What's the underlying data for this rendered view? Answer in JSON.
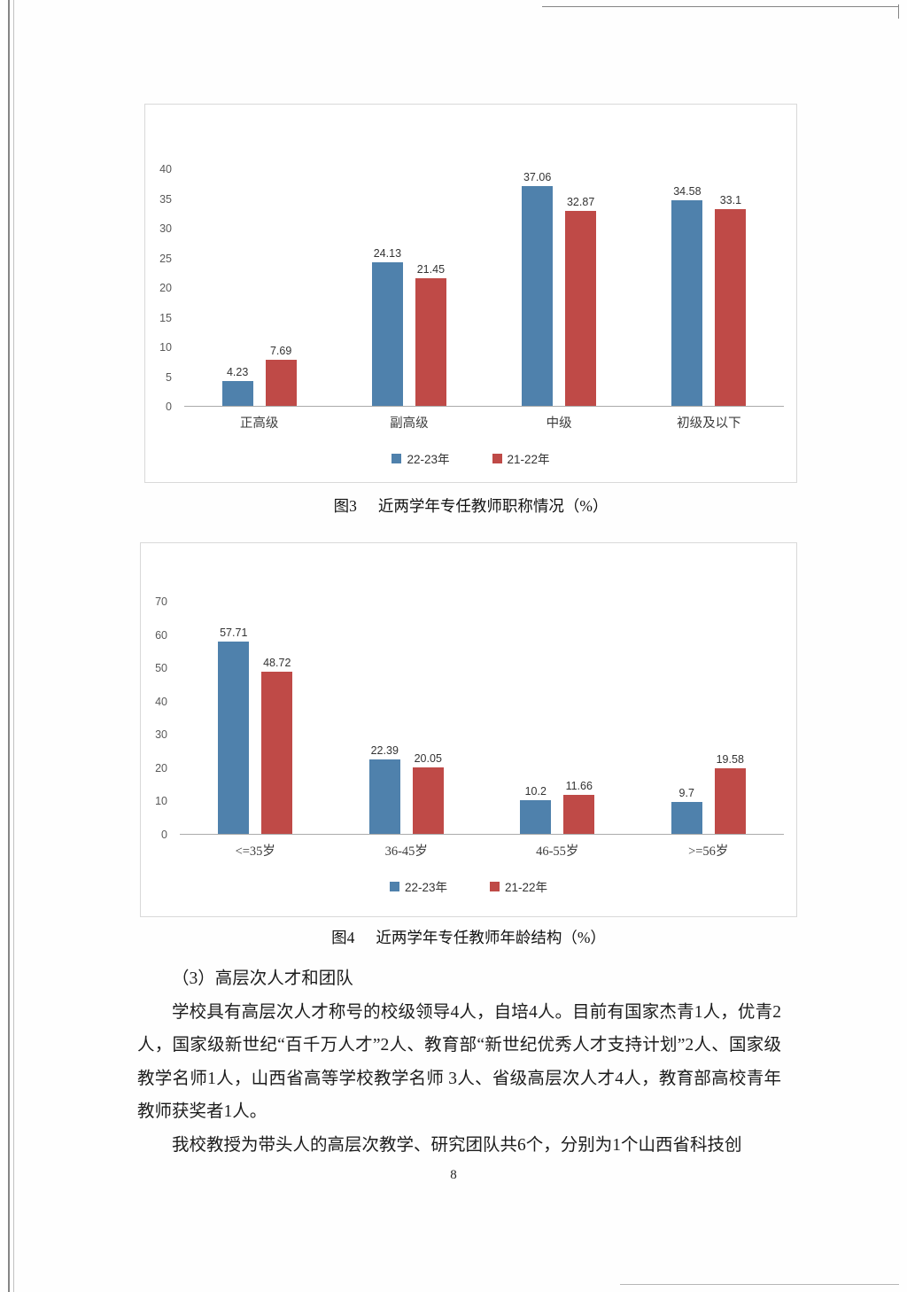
{
  "page_number": "8",
  "figures": [
    {
      "label": "图3",
      "title": "近两学年专任教师职称情况（%）"
    },
    {
      "label": "图4",
      "title": "近两学年专任教师年龄结构（%）"
    }
  ],
  "section": {
    "heading": "（3）高层次人才和团队",
    "paragraphs": [
      "学校具有高层次人才称号的校级领导4人，自培4人。目前有国家杰青1人，优青2人，国家级新世纪“百千万人才”2人、教育部“新世纪优秀人才支持计划”2人、国家级教学名师1人，山西省高等学校教学名师 3人、省级高层次人才4人，教育部高校青年教师获奖者1人。",
      "我校教授为带头人的高层次教学、研究团队共6个，分别为1个山西省科技创"
    ]
  },
  "chart_data": [
    {
      "type": "bar",
      "figure_label": "图3",
      "title": "近两学年专任教师职称情况（%）",
      "categories": [
        "正高级",
        "副高级",
        "中级",
        "初级及以下"
      ],
      "series": [
        {
          "name": "22-23年",
          "color": "#4f81ac",
          "values": [
            4.23,
            24.13,
            37.06,
            34.58
          ]
        },
        {
          "name": "21-22年",
          "color": "#bf4a47",
          "values": [
            7.69,
            21.45,
            32.87,
            33.1
          ]
        }
      ],
      "xlabel": "",
      "ylabel": "",
      "ylim": [
        0,
        40
      ],
      "ytick_step": 5,
      "grid": false,
      "legend_position": "bottom"
    },
    {
      "type": "bar",
      "figure_label": "图4",
      "title": "近两学年专任教师年龄结构（%）",
      "categories": [
        "<=35岁",
        "36-45岁",
        "46-55岁",
        ">=56岁"
      ],
      "series": [
        {
          "name": "22-23年",
          "color": "#4f81ac",
          "values": [
            57.71,
            22.39,
            10.2,
            9.7
          ]
        },
        {
          "name": "21-22年",
          "color": "#bf4a47",
          "values": [
            48.72,
            20.05,
            11.66,
            19.58
          ]
        }
      ],
      "xlabel": "",
      "ylabel": "",
      "ylim": [
        0,
        70
      ],
      "ytick_step": 10,
      "grid": false,
      "legend_position": "bottom"
    }
  ]
}
